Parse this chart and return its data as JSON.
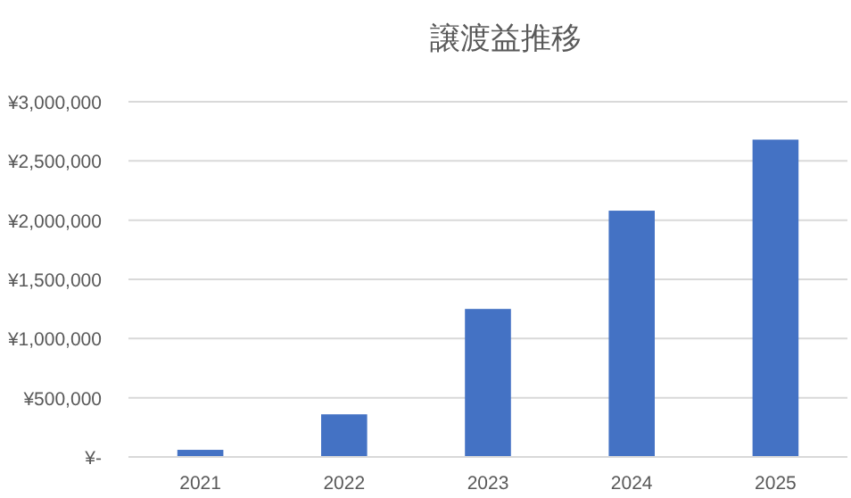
{
  "chart_data": {
    "type": "bar",
    "title": "譲渡益推移",
    "categories": [
      "2021",
      "2022",
      "2023",
      "2024",
      "2025"
    ],
    "values": [
      60000,
      360000,
      1250000,
      2080000,
      2680000
    ],
    "color": "#4472c4",
    "ylim": [
      0,
      3000000
    ],
    "yticks": [
      {
        "value": 0,
        "label": "¥-"
      },
      {
        "value": 500000,
        "label": "¥500,000"
      },
      {
        "value": 1000000,
        "label": "¥1,000,000"
      },
      {
        "value": 1500000,
        "label": "¥1,500,000"
      },
      {
        "value": 2000000,
        "label": "¥2,000,000"
      },
      {
        "value": 2500000,
        "label": "¥2,500,000"
      },
      {
        "value": 3000000,
        "label": "¥3,000,000"
      }
    ],
    "grid": "y"
  }
}
